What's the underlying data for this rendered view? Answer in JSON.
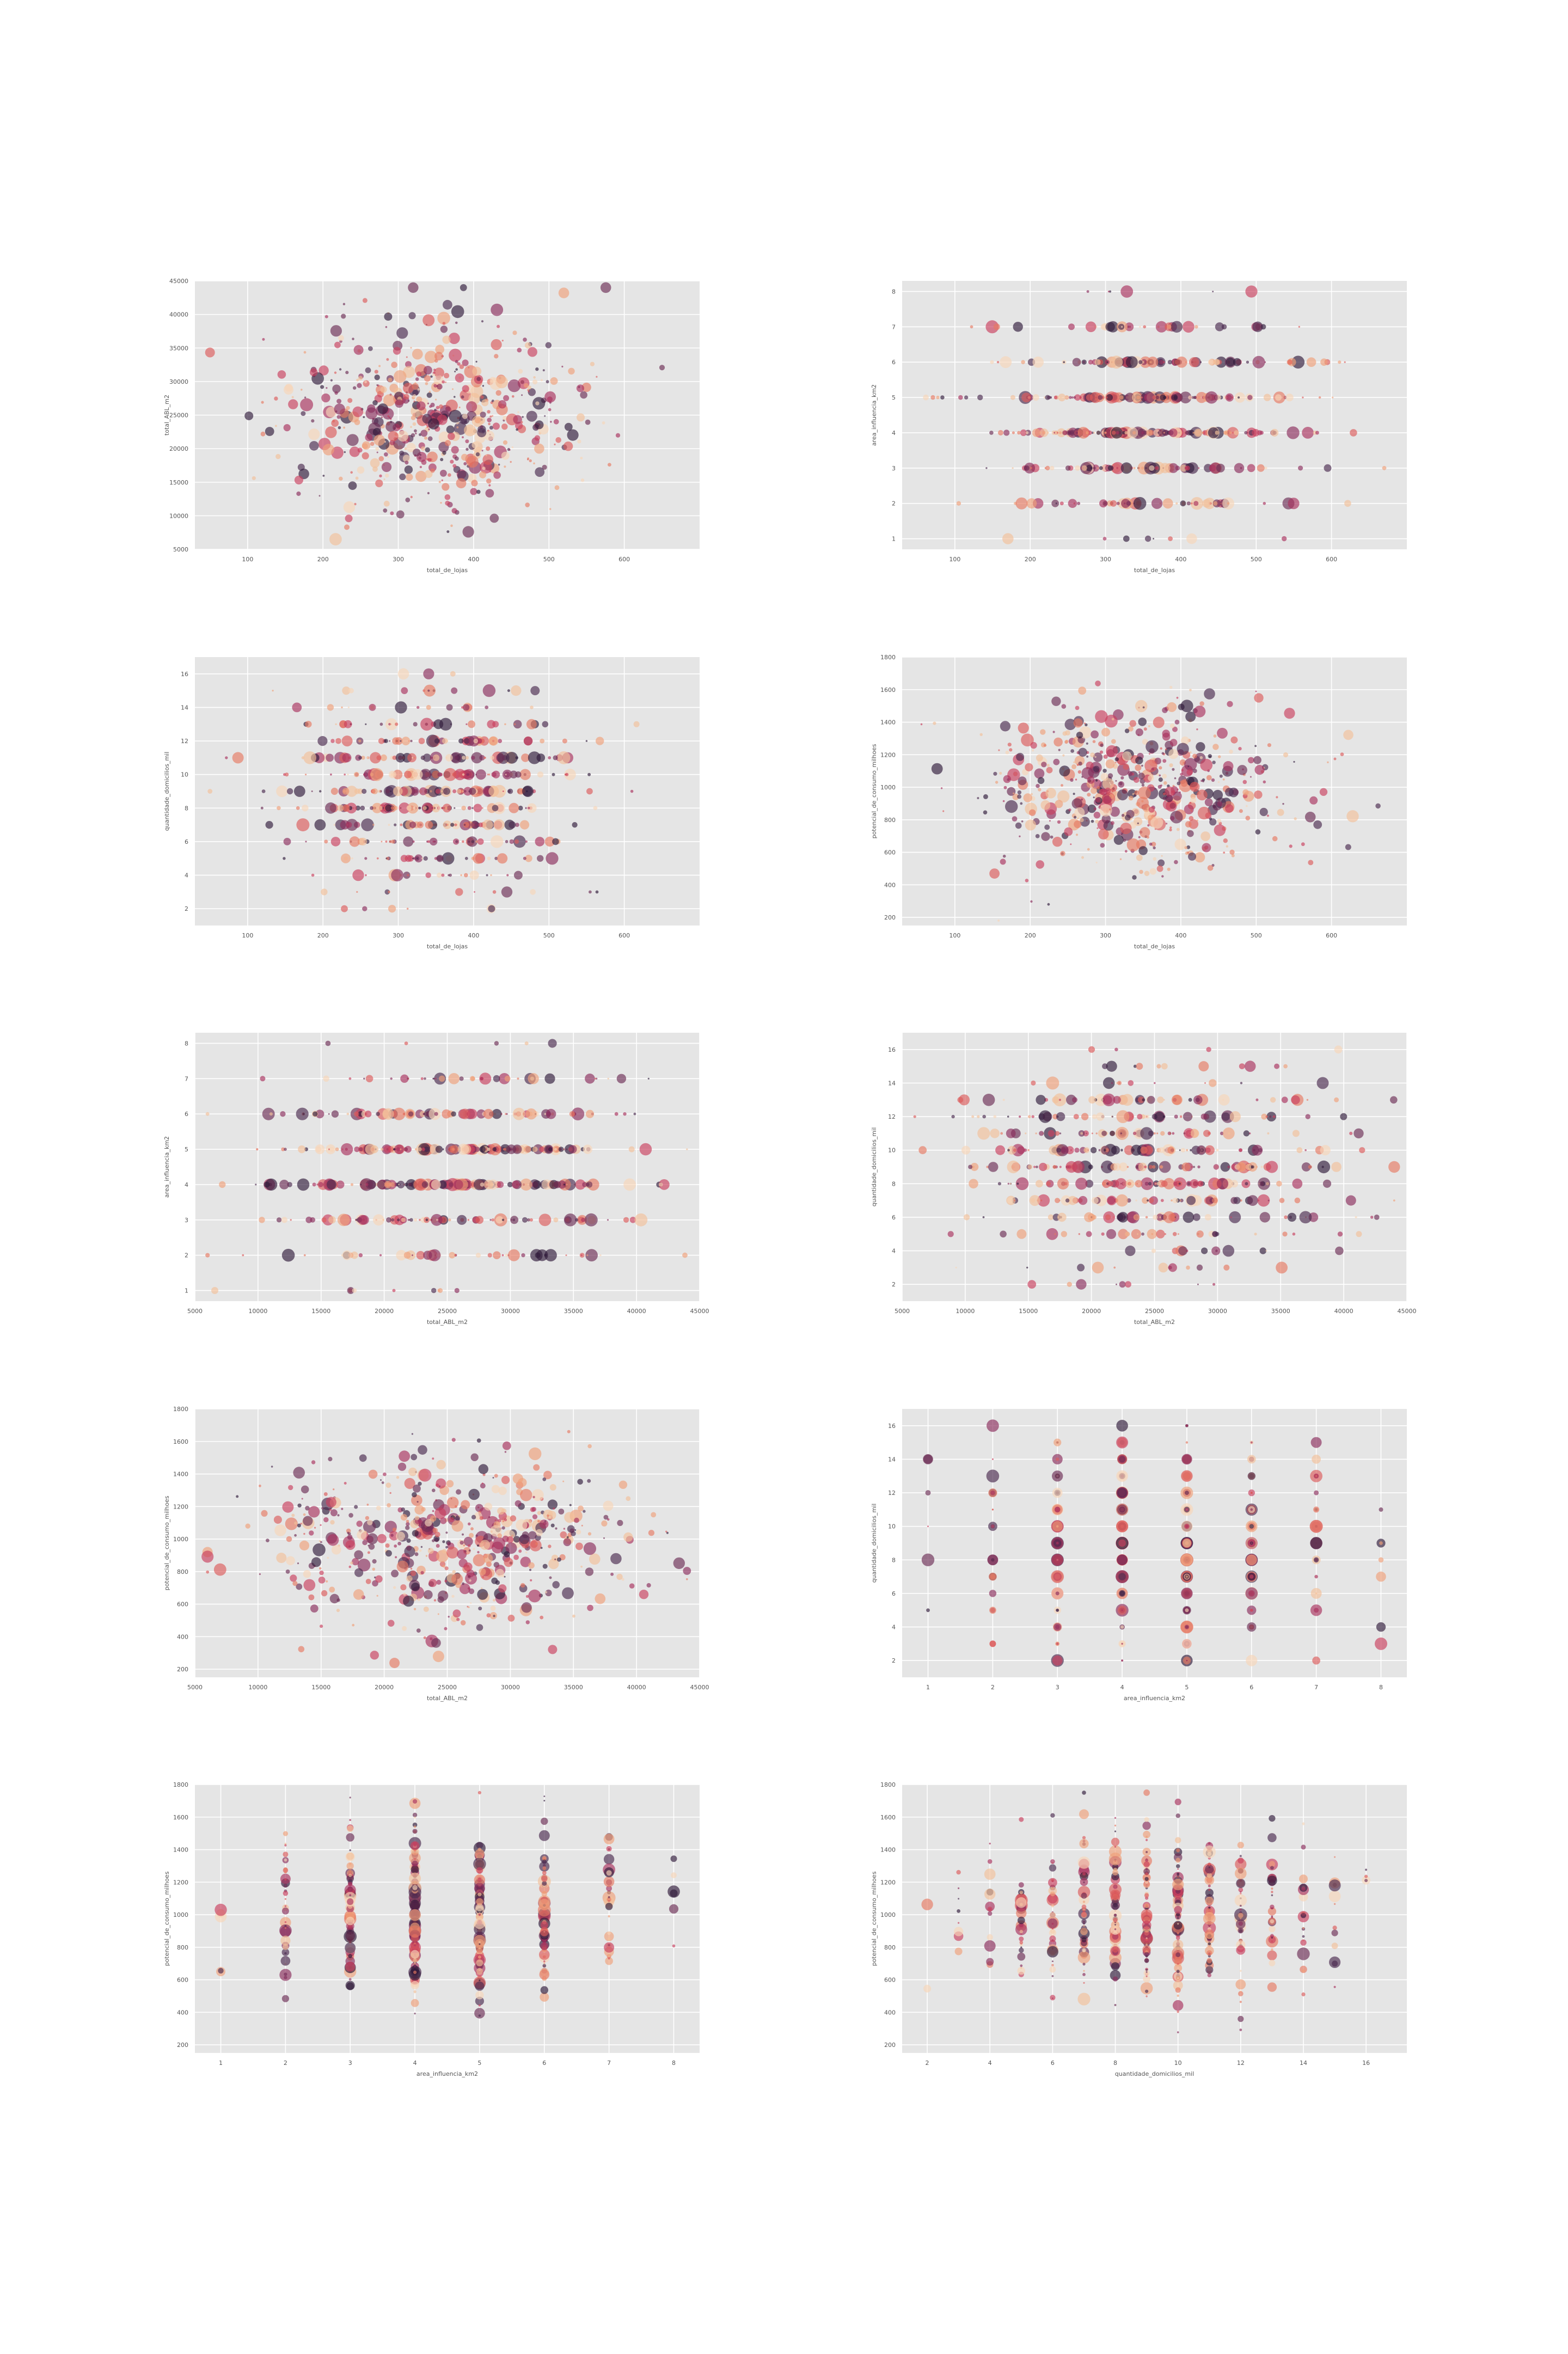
{
  "chart_data": [
    {
      "type": "scatter",
      "xlabel": "total_de_lojas",
      "ylabel": "total_ABL_m2",
      "xlim": [
        30,
        700
      ],
      "ylim": [
        5000,
        45000
      ],
      "xticks": [
        100,
        200,
        300,
        400,
        500,
        600
      ],
      "yticks": [
        5000,
        10000,
        15000,
        20000,
        25000,
        30000,
        35000,
        40000,
        45000
      ],
      "x_dist": {
        "kind": "normal",
        "mean": 350,
        "sd": 95,
        "min": 50,
        "max": 670
      },
      "y_dist": {
        "kind": "normal",
        "mean": 25000,
        "sd": 6500,
        "min": 6000,
        "max": 44000
      },
      "n_points": 600,
      "seed": 11
    },
    {
      "type": "scatter",
      "xlabel": "total_de_lojas",
      "ylabel": "area_influencia_km2",
      "xlim": [
        30,
        700
      ],
      "ylim": [
        0.7,
        8.3
      ],
      "xticks": [
        100,
        200,
        300,
        400,
        500,
        600
      ],
      "yticks": [
        1,
        2,
        3,
        4,
        5,
        6,
        7,
        8
      ],
      "x_dist": {
        "kind": "normal",
        "mean": 350,
        "sd": 95,
        "min": 50,
        "max": 670
      },
      "y_dist": {
        "kind": "discrete",
        "values": [
          1,
          2,
          3,
          4,
          5,
          6,
          7,
          8
        ],
        "weights": [
          1,
          4,
          12,
          20,
          20,
          12,
          4,
          1
        ]
      },
      "n_points": 600,
      "seed": 23
    },
    {
      "type": "scatter",
      "xlabel": "total_de_lojas",
      "ylabel": "quantidade_domicilios_mil",
      "xlim": [
        30,
        700
      ],
      "ylim": [
        1,
        17
      ],
      "xticks": [
        100,
        200,
        300,
        400,
        500,
        600
      ],
      "yticks": [
        2,
        4,
        6,
        8,
        10,
        12,
        14,
        16
      ],
      "x_dist": {
        "kind": "normal",
        "mean": 350,
        "sd": 95,
        "min": 50,
        "max": 670
      },
      "y_dist": {
        "kind": "discrete",
        "values": [
          2,
          3,
          4,
          5,
          6,
          7,
          8,
          9,
          10,
          11,
          12,
          13,
          14,
          15,
          16
        ],
        "weights": [
          1,
          2,
          4,
          7,
          10,
          14,
          17,
          18,
          17,
          14,
          10,
          7,
          4,
          2,
          1
        ]
      },
      "n_points": 600,
      "seed": 37
    },
    {
      "type": "scatter",
      "xlabel": "total_de_lojas",
      "ylabel": "potencial_de_consumo_milhoes",
      "xlim": [
        30,
        700
      ],
      "ylim": [
        150,
        1800
      ],
      "xticks": [
        100,
        200,
        300,
        400,
        500,
        600
      ],
      "yticks": [
        200,
        400,
        600,
        800,
        1000,
        1200,
        1400,
        1600,
        1800
      ],
      "x_dist": {
        "kind": "normal",
        "mean": 350,
        "sd": 95,
        "min": 50,
        "max": 670
      },
      "y_dist": {
        "kind": "normal",
        "mean": 1000,
        "sd": 250,
        "min": 180,
        "max": 1750
      },
      "n_points": 600,
      "seed": 41
    },
    {
      "type": "scatter",
      "xlabel": "total_ABL_m2",
      "ylabel": "area_influencia_km2",
      "xlim": [
        5000,
        45000
      ],
      "ylim": [
        0.7,
        8.3
      ],
      "xticks": [
        5000,
        10000,
        15000,
        20000,
        25000,
        30000,
        35000,
        40000,
        45000
      ],
      "yticks": [
        1,
        2,
        3,
        4,
        5,
        6,
        7,
        8
      ],
      "x_dist": {
        "kind": "normal",
        "mean": 25000,
        "sd": 7000,
        "min": 6000,
        "max": 44000
      },
      "y_dist": {
        "kind": "discrete",
        "values": [
          1,
          2,
          3,
          4,
          5,
          6,
          7,
          8
        ],
        "weights": [
          1,
          4,
          12,
          20,
          20,
          12,
          4,
          1
        ]
      },
      "n_points": 600,
      "seed": 53
    },
    {
      "type": "scatter",
      "xlabel": "total_ABL_m2",
      "ylabel": "quantidade_domicilios_mil",
      "xlim": [
        5000,
        45000
      ],
      "ylim": [
        1,
        17
      ],
      "xticks": [
        5000,
        10000,
        15000,
        20000,
        25000,
        30000,
        35000,
        40000,
        45000
      ],
      "yticks": [
        2,
        4,
        6,
        8,
        10,
        12,
        14,
        16
      ],
      "x_dist": {
        "kind": "normal",
        "mean": 25000,
        "sd": 7000,
        "min": 6000,
        "max": 44000
      },
      "y_dist": {
        "kind": "discrete",
        "values": [
          2,
          3,
          4,
          5,
          6,
          7,
          8,
          9,
          10,
          11,
          12,
          13,
          14,
          15,
          16
        ],
        "weights": [
          1,
          2,
          4,
          7,
          10,
          14,
          17,
          18,
          17,
          14,
          10,
          7,
          4,
          2,
          1
        ]
      },
      "n_points": 600,
      "seed": 67
    },
    {
      "type": "scatter",
      "xlabel": "total_ABL_m2",
      "ylabel": "potencial_de_consumo_milhoes",
      "xlim": [
        5000,
        45000
      ],
      "ylim": [
        150,
        1800
      ],
      "xticks": [
        5000,
        10000,
        15000,
        20000,
        25000,
        30000,
        35000,
        40000,
        45000
      ],
      "yticks": [
        200,
        400,
        600,
        800,
        1000,
        1200,
        1400,
        1600,
        1800
      ],
      "x_dist": {
        "kind": "normal",
        "mean": 25000,
        "sd": 7000,
        "min": 6000,
        "max": 44000
      },
      "y_dist": {
        "kind": "normal",
        "mean": 1000,
        "sd": 250,
        "min": 180,
        "max": 1750
      },
      "n_points": 600,
      "seed": 79
    },
    {
      "type": "scatter",
      "xlabel": "area_influencia_km2",
      "ylabel": "quantidade_domicilios_mil",
      "xlim": [
        0.6,
        8.4
      ],
      "ylim": [
        1,
        17
      ],
      "xticks": [
        1,
        2,
        3,
        4,
        5,
        6,
        7,
        8
      ],
      "yticks": [
        2,
        4,
        6,
        8,
        10,
        12,
        14,
        16
      ],
      "x_dist": {
        "kind": "discrete",
        "values": [
          1,
          2,
          3,
          4,
          5,
          6,
          7,
          8
        ],
        "weights": [
          1,
          4,
          12,
          20,
          20,
          12,
          4,
          1
        ]
      },
      "y_dist": {
        "kind": "discrete",
        "values": [
          2,
          3,
          4,
          5,
          6,
          7,
          8,
          9,
          10,
          11,
          12,
          13,
          14,
          15,
          16
        ],
        "weights": [
          1,
          2,
          4,
          7,
          10,
          14,
          17,
          18,
          17,
          14,
          10,
          7,
          4,
          2,
          1
        ]
      },
      "n_points": 600,
      "seed": 83
    },
    {
      "type": "scatter",
      "xlabel": "area_influencia_km2",
      "ylabel": "potencial_de_consumo_milhoes",
      "xlim": [
        0.6,
        8.4
      ],
      "ylim": [
        150,
        1800
      ],
      "xticks": [
        1,
        2,
        3,
        4,
        5,
        6,
        7,
        8
      ],
      "yticks": [
        200,
        400,
        600,
        800,
        1000,
        1200,
        1400,
        1600,
        1800
      ],
      "x_dist": {
        "kind": "discrete",
        "values": [
          1,
          2,
          3,
          4,
          5,
          6,
          7,
          8
        ],
        "weights": [
          1,
          4,
          12,
          20,
          20,
          12,
          4,
          1
        ]
      },
      "y_dist": {
        "kind": "normal",
        "mean": 1000,
        "sd": 250,
        "min": 180,
        "max": 1750
      },
      "n_points": 600,
      "seed": 97
    },
    {
      "type": "scatter",
      "xlabel": "quantidade_domicilios_mil",
      "ylabel": "potencial_de_consumo_milhoes",
      "xlim": [
        1.2,
        17.3
      ],
      "ylim": [
        150,
        1800
      ],
      "xticks": [
        2,
        4,
        6,
        8,
        10,
        12,
        14,
        16
      ],
      "yticks": [
        200,
        400,
        600,
        800,
        1000,
        1200,
        1400,
        1600,
        1800
      ],
      "x_dist": {
        "kind": "discrete",
        "values": [
          2,
          3,
          4,
          5,
          6,
          7,
          8,
          9,
          10,
          11,
          12,
          13,
          14,
          15,
          16
        ],
        "weights": [
          1,
          2,
          4,
          7,
          10,
          14,
          17,
          18,
          17,
          14,
          10,
          7,
          4,
          2,
          1
        ]
      },
      "y_dist": {
        "kind": "normal",
        "mean": 1000,
        "sd": 250,
        "min": 180,
        "max": 1750
      },
      "n_points": 600,
      "seed": 101
    }
  ],
  "style": {
    "axes_background": "#e5e5e5",
    "grid_color": "#ffffff",
    "point_alpha": 0.65,
    "palette": [
      "#2f1a3a",
      "#4a2a4e",
      "#6b2d55",
      "#8a2d5c",
      "#a9315d",
      "#c93f5d",
      "#db5b5b",
      "#e77a62",
      "#efa07a",
      "#f3c09a",
      "#f7d6b8"
    ]
  }
}
